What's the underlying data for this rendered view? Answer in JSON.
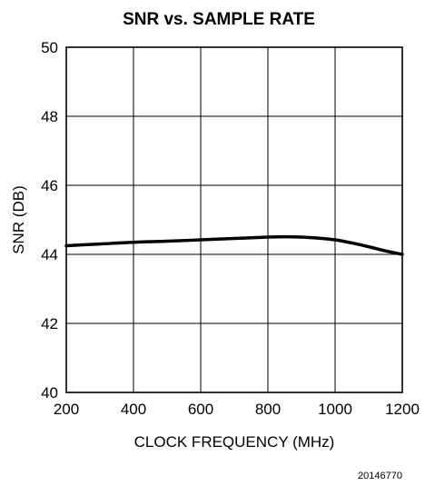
{
  "chart_data": {
    "type": "line",
    "title": "SNR vs. SAMPLE RATE",
    "xlabel": "CLOCK FREQUENCY (MHz)",
    "ylabel": "SNR (DB)",
    "xlim": [
      200,
      1200
    ],
    "ylim": [
      40,
      50
    ],
    "xticks": [
      200,
      400,
      600,
      800,
      1000,
      1200
    ],
    "yticks": [
      40,
      42,
      44,
      46,
      48,
      50
    ],
    "grid": true,
    "series": [
      {
        "x": [
          200,
          300,
          400,
          500,
          600,
          700,
          800,
          850,
          900,
          950,
          1000,
          1050,
          1100,
          1150,
          1200
        ],
        "y": [
          44.25,
          44.3,
          44.35,
          44.38,
          44.42,
          44.46,
          44.5,
          44.51,
          44.5,
          44.47,
          44.42,
          44.33,
          44.22,
          44.1,
          44.0
        ]
      }
    ]
  },
  "figure_number": "20146770"
}
